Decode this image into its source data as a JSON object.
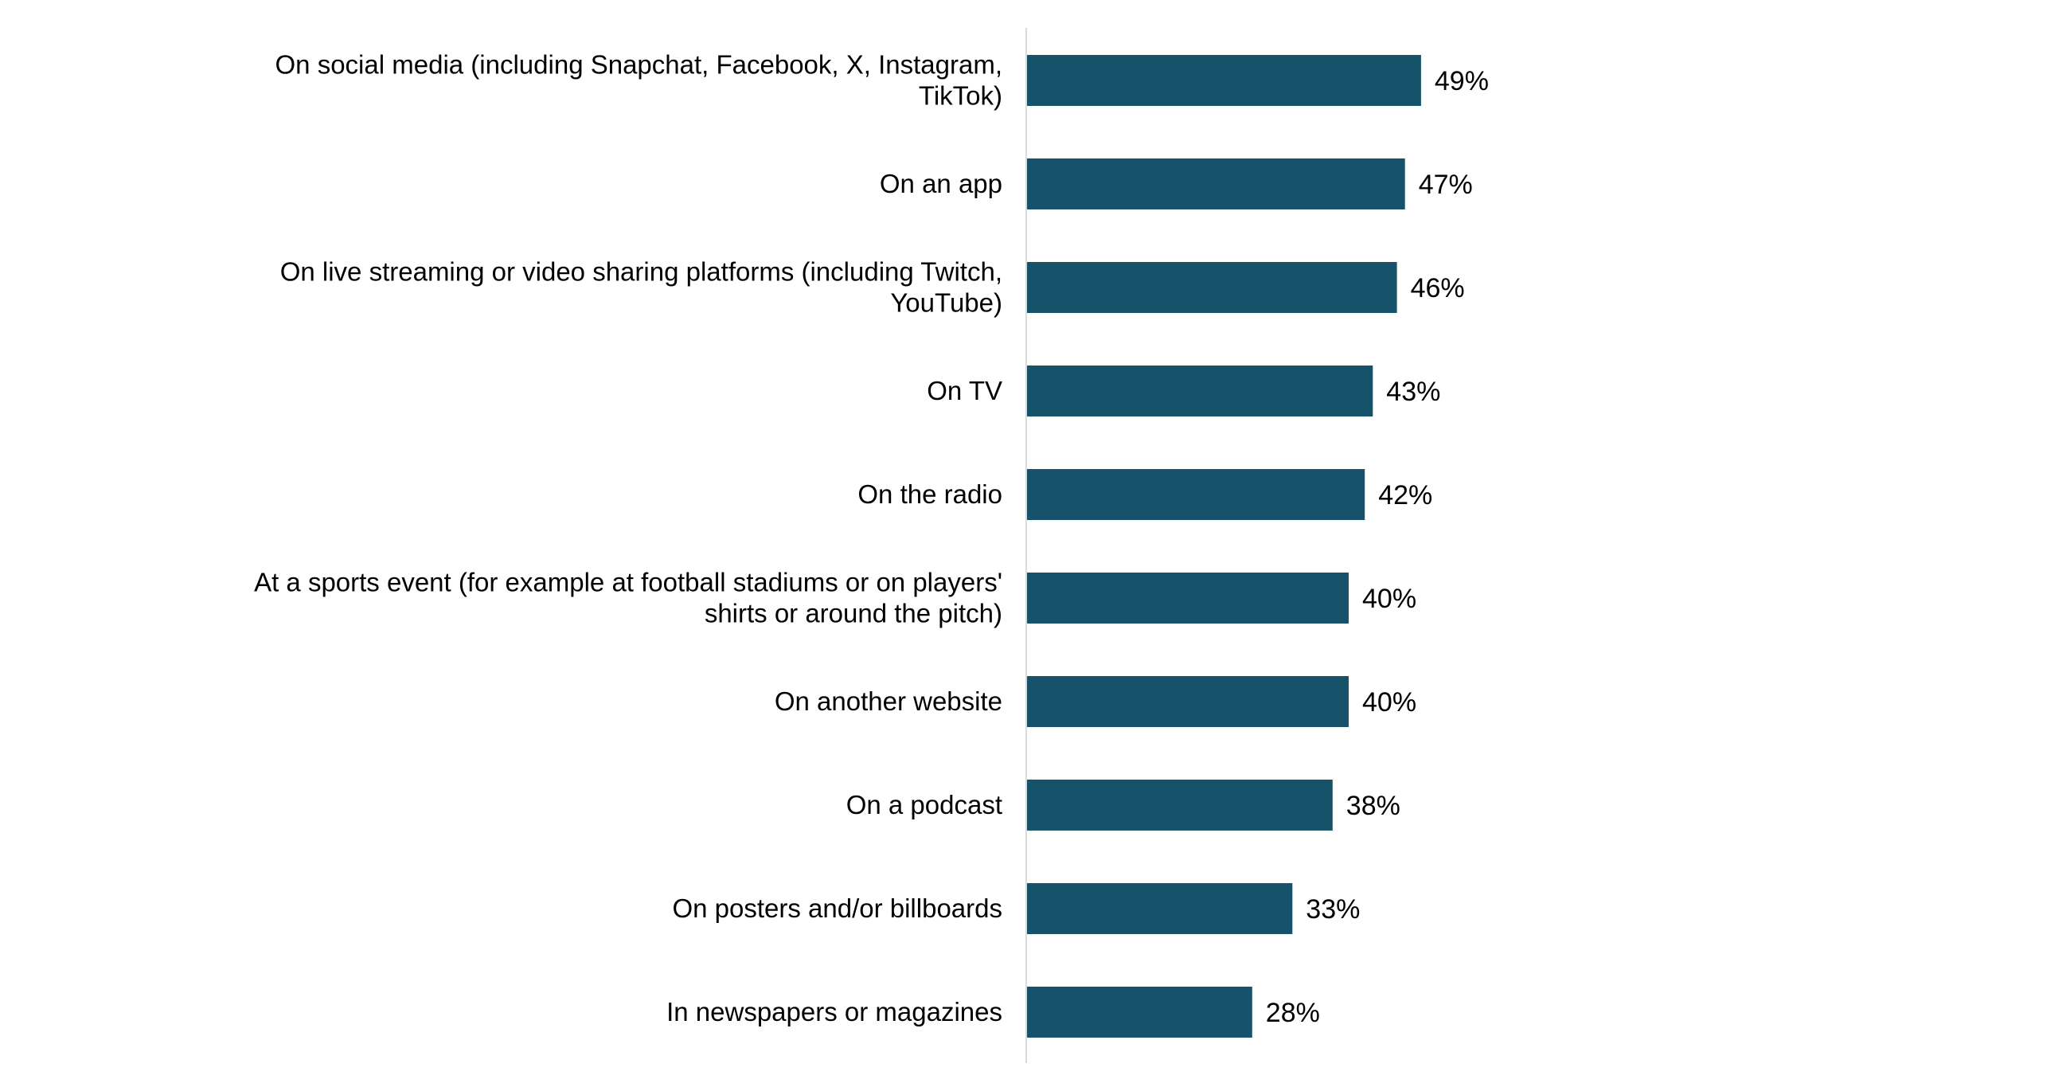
{
  "chart_data": {
    "type": "bar",
    "orientation": "horizontal",
    "title": "",
    "xlabel": "",
    "ylabel": "",
    "xlim": [
      0,
      100
    ],
    "grid": false,
    "legend": "none",
    "bar_color": "#16536B",
    "axis_color": "#D9D9D9",
    "categories": [
      [
        "On social media (including Snapchat, Facebook, X, Instagram,",
        "TikTok)"
      ],
      [
        "On an app"
      ],
      [
        "On live streaming or video sharing platforms (including Twitch,",
        "YouTube)"
      ],
      [
        "On TV"
      ],
      [
        "On the radio"
      ],
      [
        "At a sports event (for example at football stadiums or on players'",
        "shirts or around the pitch)"
      ],
      [
        "On another website"
      ],
      [
        "On a podcast"
      ],
      [
        "On posters and/or billboards"
      ],
      [
        "In newspapers or magazines"
      ]
    ],
    "values": [
      49,
      47,
      46,
      43,
      42,
      40,
      40,
      38,
      33,
      28
    ],
    "data_labels": [
      "49%",
      "47%",
      "46%",
      "43%",
      "42%",
      "40%",
      "40%",
      "38%",
      "33%",
      "28%"
    ]
  }
}
